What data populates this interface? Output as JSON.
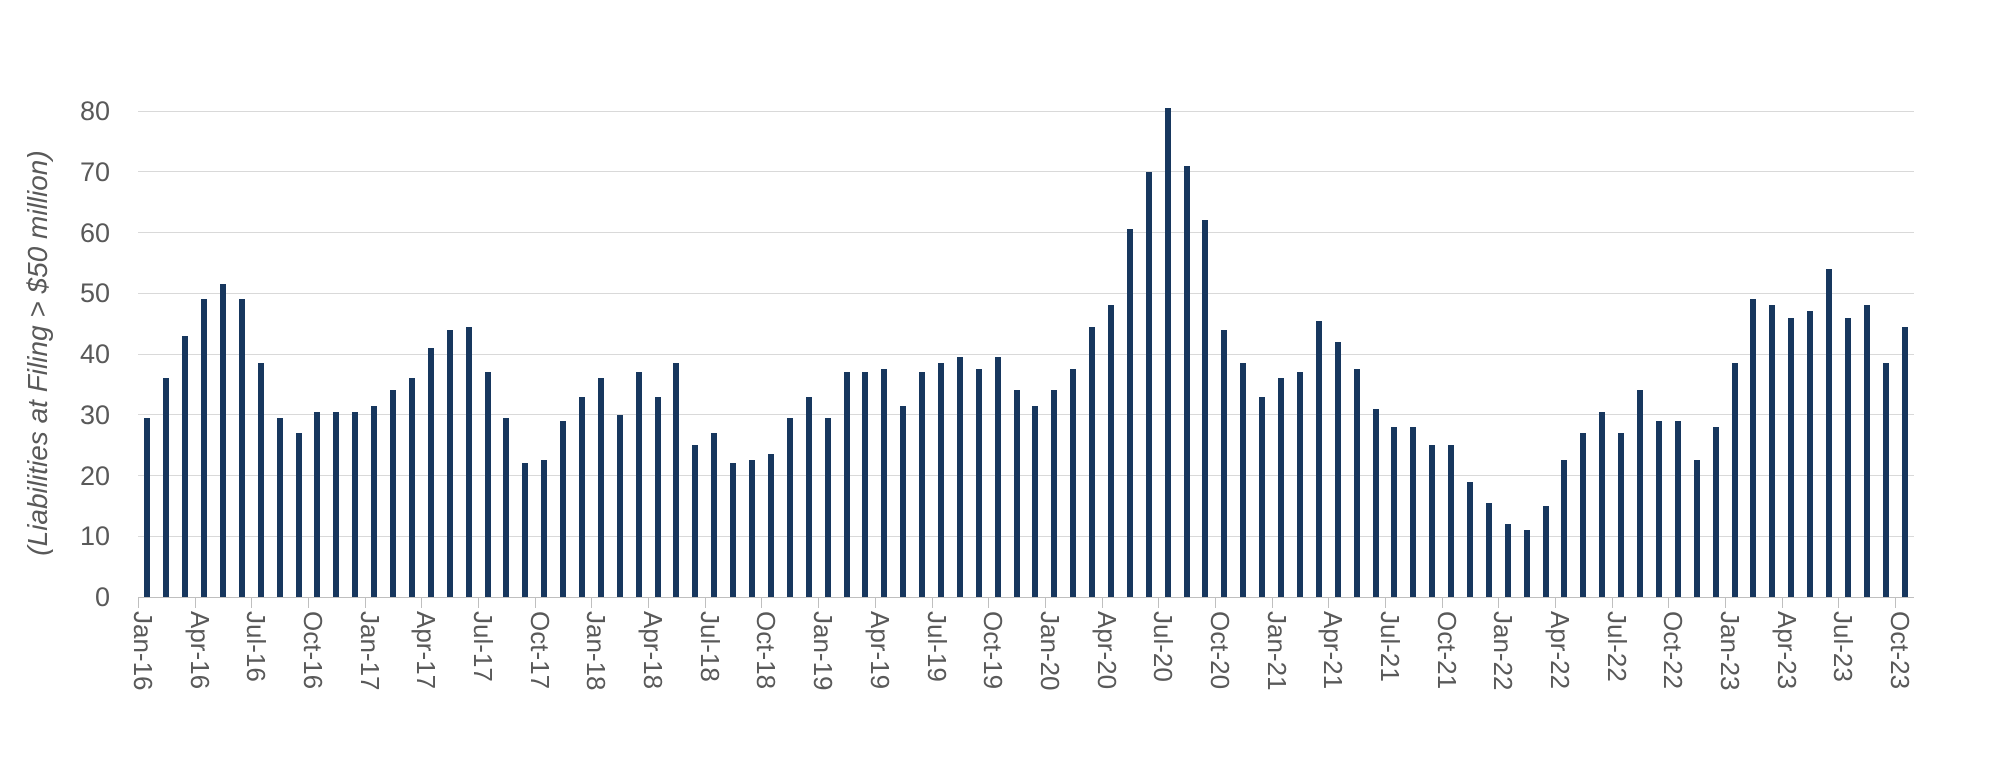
{
  "chart_data": {
    "type": "bar",
    "title": "",
    "xlabel": "",
    "ylabel": "(Liabilities at Filing > $50 million)",
    "ylim": [
      0,
      80
    ],
    "ytick_interval": 10,
    "ytick_labels": [
      "0",
      "10",
      "20",
      "30",
      "40",
      "50",
      "60",
      "70",
      "80"
    ],
    "grid": "horizontal",
    "legend_position": "none",
    "bar_color": "#17375E",
    "categories": [
      "Jan-16",
      "Feb-16",
      "Mar-16",
      "Apr-16",
      "May-16",
      "Jun-16",
      "Jul-16",
      "Aug-16",
      "Sep-16",
      "Oct-16",
      "Nov-16",
      "Dec-16",
      "Jan-17",
      "Feb-17",
      "Mar-17",
      "Apr-17",
      "May-17",
      "Jun-17",
      "Jul-17",
      "Aug-17",
      "Sep-17",
      "Oct-17",
      "Nov-17",
      "Dec-17",
      "Jan-18",
      "Feb-18",
      "Mar-18",
      "Apr-18",
      "May-18",
      "Jun-18",
      "Jul-18",
      "Aug-18",
      "Sep-18",
      "Oct-18",
      "Nov-18",
      "Dec-18",
      "Jan-19",
      "Feb-19",
      "Mar-19",
      "Apr-19",
      "May-19",
      "Jun-19",
      "Jul-19",
      "Aug-19",
      "Sep-19",
      "Oct-19",
      "Nov-19",
      "Dec-19",
      "Jan-20",
      "Feb-20",
      "Mar-20",
      "Apr-20",
      "May-20",
      "Jun-20",
      "Jul-20",
      "Aug-20",
      "Sep-20",
      "Oct-20",
      "Nov-20",
      "Dec-20",
      "Jan-21",
      "Feb-21",
      "Mar-21",
      "Apr-21",
      "May-21",
      "Jun-21",
      "Jul-21",
      "Aug-21",
      "Sep-21",
      "Oct-21",
      "Nov-21",
      "Dec-21",
      "Jan-22",
      "Feb-22",
      "Mar-22",
      "Apr-22",
      "May-22",
      "Jun-22",
      "Jul-22",
      "Aug-22",
      "Sep-22",
      "Oct-22",
      "Nov-22",
      "Dec-22",
      "Jan-23",
      "Feb-23",
      "Mar-23",
      "Apr-23",
      "May-23",
      "Jun-23",
      "Jul-23",
      "Aug-23",
      "Sep-23",
      "Oct-23"
    ],
    "values": [
      29.5,
      36,
      43,
      49,
      51.5,
      49,
      38.5,
      29.5,
      27,
      30.5,
      30.5,
      30.5,
      31.5,
      34,
      36,
      41,
      44,
      44.5,
      37,
      29.5,
      22,
      22.5,
      29,
      33,
      36,
      30,
      37,
      33,
      38.5,
      25,
      27,
      22,
      22.5,
      23.5,
      29.5,
      33,
      29.5,
      37,
      37,
      37.5,
      31.5,
      37,
      38.5,
      39.5,
      37.5,
      39.5,
      34,
      31.5,
      34,
      37.5,
      44.5,
      48,
      60.5,
      70,
      80.5,
      71,
      62,
      44,
      38.5,
      33,
      36,
      37,
      45.5,
      42,
      37.5,
      31,
      28,
      28,
      25,
      25,
      19,
      15.5,
      12,
      11,
      15,
      22.5,
      27,
      30.5,
      27,
      34,
      29,
      29,
      22.5,
      28,
      38.5,
      49,
      48,
      46,
      47,
      54,
      46,
      48,
      38.5,
      44.5
    ],
    "xtick_every": 3,
    "xtick_labels": [
      "Jan-16",
      "Apr-16",
      "Jul-16",
      "Oct-16",
      "Jan-17",
      "Apr-17",
      "Jul-17",
      "Oct-17",
      "Jan-18",
      "Apr-18",
      "Jul-18",
      "Oct-18",
      "Jan-19",
      "Apr-19",
      "Jul-19",
      "Oct-19",
      "Jan-20",
      "Apr-20",
      "Jul-20",
      "Oct-20",
      "Jan-21",
      "Apr-21",
      "Jul-21",
      "Oct-21",
      "Jan-22",
      "Apr-22",
      "Jul-22",
      "Oct-22",
      "Jan-23",
      "Apr-23",
      "Jul-23",
      "Oct-23"
    ]
  },
  "colors": {
    "bar": "#17375E",
    "gridline": "#D9D9D9",
    "axis": "#BFBFBF",
    "text": "#595959"
  }
}
